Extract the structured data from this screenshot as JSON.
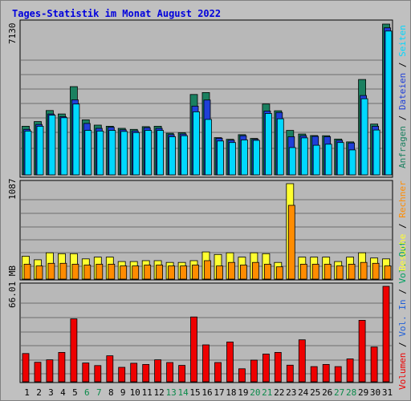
{
  "title": "Tages-Statistik im Monat August 2022",
  "colors": {
    "frame_bg": "#c0c0c0",
    "panel_bg": "#b8b8b8",
    "anfragen": "#1a8060",
    "dateien": "#1f3fd8",
    "seiten": "#00d8ff",
    "besuche": "#ffff30",
    "rechner": "#ff8c00",
    "volumen": "#ee0000",
    "vol_in": "#1f5fd8",
    "vol_out": "#00a060",
    "weekend_day": "#0a8a4a",
    "weekday": "#000000",
    "separator": "#000000"
  },
  "chart_data": [
    {
      "type": "bar",
      "panel": "hits",
      "ymax_label": "7130",
      "ymax": 7130,
      "legend": [
        {
          "label": "Anfragen",
          "color": "#1a8060"
        },
        {
          "label": "Dateien",
          "color": "#1f3fd8"
        },
        {
          "label": "Seiten",
          "color": "#00d8ff"
        }
      ],
      "series": [
        {
          "name": "Anfragen",
          "values": [
            2300,
            2520,
            3040,
            2880,
            4170,
            2600,
            2350,
            2300,
            2200,
            2150,
            2280,
            2300,
            1970,
            1990,
            3800,
            3890,
            1760,
            1680,
            1900,
            1720,
            3350,
            3030,
            2100,
            1930,
            1860,
            1850,
            1690,
            1560,
            4510,
            2400,
            7130
          ]
        },
        {
          "name": "Dateien",
          "values": [
            2150,
            2380,
            2880,
            2750,
            3550,
            2430,
            2200,
            2250,
            2130,
            2080,
            2230,
            2200,
            1900,
            1930,
            3250,
            3540,
            1730,
            1640,
            1850,
            1680,
            3020,
            2950,
            1800,
            1850,
            1820,
            1800,
            1630,
            1510,
            3750,
            2300,
            6950
          ]
        },
        {
          "name": "Seiten",
          "values": [
            2070,
            2300,
            2820,
            2700,
            3350,
            2100,
            2070,
            2100,
            2050,
            2000,
            2100,
            2100,
            1800,
            1850,
            2980,
            2620,
            1600,
            1530,
            1650,
            1630,
            2900,
            2650,
            1290,
            1750,
            1400,
            1450,
            1530,
            1180,
            3600,
            2120,
            6800
          ]
        }
      ]
    },
    {
      "type": "bar",
      "panel": "visits",
      "ymax_label": "1087",
      "ymax": 1087,
      "legend": [
        {
          "label": "Besuche",
          "color": "#ffff30"
        },
        {
          "label": "Rechner",
          "color": "#ff8c00"
        }
      ],
      "series": [
        {
          "name": "Besuche",
          "values": [
            260,
            220,
            300,
            290,
            290,
            230,
            250,
            250,
            200,
            200,
            210,
            210,
            190,
            190,
            210,
            310,
            280,
            300,
            250,
            300,
            290,
            190,
            1087,
            250,
            250,
            250,
            200,
            250,
            300,
            240,
            230
          ]
        },
        {
          "name": "Rechner",
          "values": [
            170,
            150,
            180,
            180,
            170,
            160,
            170,
            170,
            150,
            150,
            160,
            160,
            150,
            150,
            160,
            210,
            150,
            190,
            160,
            190,
            170,
            140,
            840,
            170,
            170,
            170,
            150,
            170,
            190,
            180,
            150
          ]
        }
      ]
    },
    {
      "type": "bar",
      "panel": "volume",
      "ymax_label": "66.01 MB",
      "ymax": 66.01,
      "legend": [
        {
          "label": "Volumen",
          "color": "#ee0000"
        },
        {
          "label": "Vol. In",
          "color": "#1f5fd8"
        },
        {
          "label": "Vol. Out",
          "color": "#00a060"
        }
      ],
      "series": [
        {
          "name": "Volumen",
          "values": [
            19.5,
            13.5,
            15.2,
            20.3,
            43.5,
            13.0,
            11.2,
            18.0,
            10.0,
            12.8,
            12.0,
            15.2,
            13.3,
            11.3,
            44.8,
            25.5,
            13.3,
            27.5,
            9.0,
            15.0,
            19.2,
            20.3,
            11.5,
            29.0,
            10.5,
            12.0,
            10.5,
            15.8,
            42.5,
            24.0,
            66.01
          ]
        }
      ]
    }
  ],
  "days": [
    "1",
    "2",
    "3",
    "4",
    "5",
    "6",
    "7",
    "8",
    "9",
    "10",
    "11",
    "12",
    "13",
    "14",
    "15",
    "16",
    "17",
    "18",
    "19",
    "20",
    "21",
    "22",
    "23",
    "24",
    "25",
    "26",
    "27",
    "28",
    "29",
    "30",
    "31"
  ],
  "weekend_days": [
    "6",
    "7",
    "13",
    "14",
    "20",
    "21",
    "27",
    "28"
  ],
  "separators": [
    " / ",
    " / "
  ]
}
